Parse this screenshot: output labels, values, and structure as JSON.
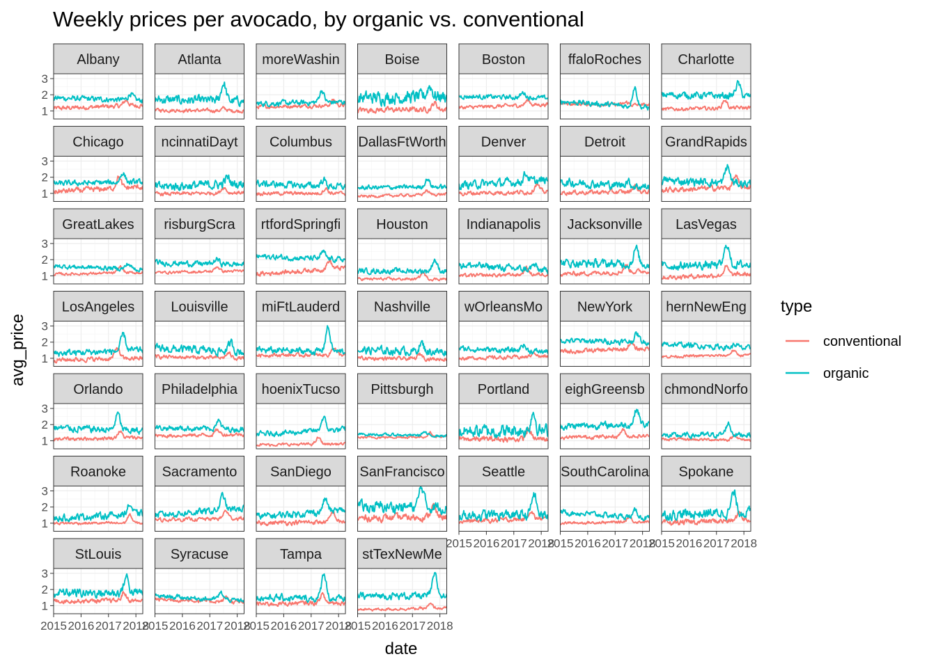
{
  "chart_data": {
    "type": "line",
    "title": "Weekly prices per avocado, by organic vs. conventional",
    "xlabel": "date",
    "ylabel": "avg_price",
    "x_ticks": [
      "2015",
      "2016",
      "2017",
      "2018"
    ],
    "y_ticks": [
      "1",
      "2",
      "3"
    ],
    "xlim": [
      2015.0,
      2018.25
    ],
    "ylim": [
      0.5,
      3.3
    ],
    "grid": true,
    "facet": "wrap",
    "legend": {
      "title": "type",
      "position": "right",
      "entries": [
        {
          "name": "conventional",
          "color": "#F8766D"
        },
        {
          "name": "organic",
          "color": "#00BFC4"
        }
      ]
    },
    "series_colors": {
      "conventional": "#F8766D",
      "organic": "#00BFC4"
    },
    "panels": [
      {
        "region": "Albany",
        "conventional": {
          "start": 1.15,
          "end": 1.35,
          "peak": 1.7,
          "vol": 0.1
        },
        "organic": {
          "start": 1.8,
          "end": 1.65,
          "peak": 2.2,
          "vol": 0.12
        }
      },
      {
        "region": "Atlanta",
        "conventional": {
          "start": 1.05,
          "end": 1.0,
          "peak": 1.2,
          "vol": 0.08
        },
        "organic": {
          "start": 1.7,
          "end": 1.6,
          "peak": 2.8,
          "vol": 0.2
        }
      },
      {
        "region": "moreWashin",
        "conventional": {
          "start": 1.25,
          "end": 1.35,
          "peak": 1.7,
          "vol": 0.08
        },
        "organic": {
          "start": 1.45,
          "end": 1.55,
          "peak": 2.3,
          "vol": 0.12
        }
      },
      {
        "region": "Boise",
        "conventional": {
          "start": 1.05,
          "end": 1.1,
          "peak": 1.5,
          "vol": 0.12
        },
        "organic": {
          "start": 1.8,
          "end": 1.9,
          "peak": 2.6,
          "vol": 0.28
        }
      },
      {
        "region": "Boston",
        "conventional": {
          "start": 1.2,
          "end": 1.4,
          "peak": 1.7,
          "vol": 0.08
        },
        "organic": {
          "start": 1.9,
          "end": 1.8,
          "peak": 2.2,
          "vol": 0.1
        }
      },
      {
        "region": "ffaloRoches",
        "conventional": {
          "start": 1.45,
          "end": 1.35,
          "peak": 1.6,
          "vol": 0.08
        },
        "organic": {
          "start": 1.6,
          "end": 1.2,
          "peak": 2.8,
          "vol": 0.12
        }
      },
      {
        "region": "Charlotte",
        "conventional": {
          "start": 1.1,
          "end": 1.2,
          "peak": 1.7,
          "vol": 0.08
        },
        "organic": {
          "start": 2.0,
          "end": 1.9,
          "peak": 2.8,
          "vol": 0.15
        }
      },
      {
        "region": "Chicago",
        "conventional": {
          "start": 1.1,
          "end": 1.4,
          "peak": 2.1,
          "vol": 0.12
        },
        "organic": {
          "start": 1.6,
          "end": 1.7,
          "peak": 2.3,
          "vol": 0.12
        }
      },
      {
        "region": "ncinnatiDayt",
        "conventional": {
          "start": 0.95,
          "end": 1.05,
          "peak": 1.4,
          "vol": 0.08
        },
        "organic": {
          "start": 1.4,
          "end": 1.6,
          "peak": 2.0,
          "vol": 0.2
        }
      },
      {
        "region": "Columbus",
        "conventional": {
          "start": 1.0,
          "end": 1.0,
          "peak": 1.3,
          "vol": 0.08
        },
        "organic": {
          "start": 1.6,
          "end": 1.4,
          "peak": 2.0,
          "vol": 0.15
        }
      },
      {
        "region": "DallasFtWorth",
        "conventional": {
          "start": 0.8,
          "end": 0.95,
          "peak": 1.2,
          "vol": 0.06
        },
        "organic": {
          "start": 1.35,
          "end": 1.4,
          "peak": 1.9,
          "vol": 0.1
        }
      },
      {
        "region": "Denver",
        "conventional": {
          "start": 1.0,
          "end": 1.1,
          "peak": 1.6,
          "vol": 0.1
        },
        "organic": {
          "start": 1.5,
          "end": 1.8,
          "peak": 2.3,
          "vol": 0.18
        }
      },
      {
        "region": "Detroit",
        "conventional": {
          "start": 1.05,
          "end": 1.1,
          "peak": 1.5,
          "vol": 0.1
        },
        "organic": {
          "start": 1.7,
          "end": 1.4,
          "peak": 2.0,
          "vol": 0.18
        }
      },
      {
        "region": "GrandRapids",
        "conventional": {
          "start": 1.2,
          "end": 1.4,
          "peak": 2.1,
          "vol": 0.12
        },
        "organic": {
          "start": 1.8,
          "end": 1.6,
          "peak": 2.8,
          "vol": 0.18
        }
      },
      {
        "region": "GreatLakes",
        "conventional": {
          "start": 1.1,
          "end": 1.2,
          "peak": 1.6,
          "vol": 0.06
        },
        "organic": {
          "start": 1.6,
          "end": 1.4,
          "peak": 1.9,
          "vol": 0.1
        }
      },
      {
        "region": "risburgScra",
        "conventional": {
          "start": 1.2,
          "end": 1.3,
          "peak": 1.6,
          "vol": 0.06
        },
        "organic": {
          "start": 1.8,
          "end": 1.7,
          "peak": 2.1,
          "vol": 0.12
        }
      },
      {
        "region": "rtfordSpringfi",
        "conventional": {
          "start": 1.1,
          "end": 1.5,
          "peak": 2.0,
          "vol": 0.1
        },
        "organic": {
          "start": 2.2,
          "end": 2.0,
          "peak": 2.6,
          "vol": 0.12
        }
      },
      {
        "region": "Houston",
        "conventional": {
          "start": 0.8,
          "end": 0.8,
          "peak": 1.2,
          "vol": 0.06
        },
        "organic": {
          "start": 1.3,
          "end": 1.3,
          "peak": 2.0,
          "vol": 0.12
        }
      },
      {
        "region": "Indianapolis",
        "conventional": {
          "start": 1.0,
          "end": 1.1,
          "peak": 1.5,
          "vol": 0.08
        },
        "organic": {
          "start": 1.7,
          "end": 1.3,
          "peak": 2.0,
          "vol": 0.15
        }
      },
      {
        "region": "Jacksonville",
        "conventional": {
          "start": 1.1,
          "end": 1.3,
          "peak": 1.7,
          "vol": 0.1
        },
        "organic": {
          "start": 1.8,
          "end": 1.7,
          "peak": 2.8,
          "vol": 0.18
        }
      },
      {
        "region": "LasVegas",
        "conventional": {
          "start": 0.9,
          "end": 1.1,
          "peak": 1.6,
          "vol": 0.1
        },
        "organic": {
          "start": 1.6,
          "end": 1.7,
          "peak": 3.0,
          "vol": 0.18
        }
      },
      {
        "region": "LosAngeles",
        "conventional": {
          "start": 0.9,
          "end": 1.0,
          "peak": 1.7,
          "vol": 0.1
        },
        "organic": {
          "start": 1.3,
          "end": 1.5,
          "peak": 2.5,
          "vol": 0.15
        }
      },
      {
        "region": "Louisville",
        "conventional": {
          "start": 1.1,
          "end": 1.0,
          "peak": 1.4,
          "vol": 0.08
        },
        "organic": {
          "start": 1.6,
          "end": 1.4,
          "peak": 2.1,
          "vol": 0.18
        }
      },
      {
        "region": "miFtLauderd",
        "conventional": {
          "start": 1.2,
          "end": 1.2,
          "peak": 1.7,
          "vol": 0.08
        },
        "organic": {
          "start": 1.5,
          "end": 1.4,
          "peak": 3.0,
          "vol": 0.15
        }
      },
      {
        "region": "Nashville",
        "conventional": {
          "start": 1.0,
          "end": 0.95,
          "peak": 1.3,
          "vol": 0.08
        },
        "organic": {
          "start": 1.5,
          "end": 1.4,
          "peak": 2.0,
          "vol": 0.18
        }
      },
      {
        "region": "wOrleansMo",
        "conventional": {
          "start": 1.0,
          "end": 1.1,
          "peak": 1.4,
          "vol": 0.08
        },
        "organic": {
          "start": 1.6,
          "end": 1.4,
          "peak": 2.0,
          "vol": 0.12
        }
      },
      {
        "region": "NewYork",
        "conventional": {
          "start": 1.4,
          "end": 1.6,
          "peak": 2.0,
          "vol": 0.1
        },
        "organic": {
          "start": 2.1,
          "end": 2.0,
          "peak": 2.6,
          "vol": 0.12
        }
      },
      {
        "region": "hernNewEng",
        "conventional": {
          "start": 1.1,
          "end": 1.2,
          "peak": 1.5,
          "vol": 0.06
        },
        "organic": {
          "start": 1.9,
          "end": 1.6,
          "peak": 2.1,
          "vol": 0.12
        }
      },
      {
        "region": "Orlando",
        "conventional": {
          "start": 1.1,
          "end": 1.2,
          "peak": 1.6,
          "vol": 0.08
        },
        "organic": {
          "start": 1.8,
          "end": 1.6,
          "peak": 2.8,
          "vol": 0.15
        }
      },
      {
        "region": "Philadelphia",
        "conventional": {
          "start": 1.3,
          "end": 1.4,
          "peak": 1.7,
          "vol": 0.08
        },
        "organic": {
          "start": 1.8,
          "end": 1.7,
          "peak": 2.3,
          "vol": 0.12
        }
      },
      {
        "region": "hoenixTucso",
        "conventional": {
          "start": 0.75,
          "end": 0.8,
          "peak": 1.2,
          "vol": 0.06
        },
        "organic": {
          "start": 1.4,
          "end": 1.7,
          "peak": 2.5,
          "vol": 0.12
        }
      },
      {
        "region": "Pittsburgh",
        "conventional": {
          "start": 1.2,
          "end": 1.25,
          "peak": 1.5,
          "vol": 0.05
        },
        "organic": {
          "start": 1.4,
          "end": 1.3,
          "peak": 1.6,
          "vol": 0.06
        }
      },
      {
        "region": "Portland",
        "conventional": {
          "start": 1.1,
          "end": 1.1,
          "peak": 1.7,
          "vol": 0.12
        },
        "organic": {
          "start": 1.6,
          "end": 1.6,
          "peak": 2.8,
          "vol": 0.28
        }
      },
      {
        "region": "eighGreensb",
        "conventional": {
          "start": 1.2,
          "end": 1.3,
          "peak": 1.7,
          "vol": 0.08
        },
        "organic": {
          "start": 1.9,
          "end": 2.0,
          "peak": 3.0,
          "vol": 0.15
        }
      },
      {
        "region": "chmondNorfo",
        "conventional": {
          "start": 1.1,
          "end": 1.05,
          "peak": 1.4,
          "vol": 0.06
        },
        "organic": {
          "start": 1.3,
          "end": 1.4,
          "peak": 2.1,
          "vol": 0.12
        }
      },
      {
        "region": "Roanoke",
        "conventional": {
          "start": 1.0,
          "end": 1.0,
          "peak": 1.5,
          "vol": 0.06
        },
        "organic": {
          "start": 1.3,
          "end": 1.6,
          "peak": 2.2,
          "vol": 0.15
        }
      },
      {
        "region": "Sacramento",
        "conventional": {
          "start": 1.2,
          "end": 1.3,
          "peak": 1.8,
          "vol": 0.08
        },
        "organic": {
          "start": 1.5,
          "end": 1.9,
          "peak": 2.8,
          "vol": 0.15
        }
      },
      {
        "region": "SanDiego",
        "conventional": {
          "start": 1.0,
          "end": 1.1,
          "peak": 1.7,
          "vol": 0.1
        },
        "organic": {
          "start": 1.4,
          "end": 1.8,
          "peak": 2.6,
          "vol": 0.15
        }
      },
      {
        "region": "SanFrancisco",
        "conventional": {
          "start": 1.3,
          "end": 1.4,
          "peak": 2.1,
          "vol": 0.15
        },
        "organic": {
          "start": 2.0,
          "end": 2.0,
          "peak": 3.3,
          "vol": 0.25
        }
      },
      {
        "region": "Seattle",
        "conventional": {
          "start": 1.1,
          "end": 1.3,
          "peak": 1.8,
          "vol": 0.1
        },
        "organic": {
          "start": 1.5,
          "end": 1.5,
          "peak": 2.8,
          "vol": 0.22
        }
      },
      {
        "region": "SouthCarolina",
        "conventional": {
          "start": 1.0,
          "end": 1.1,
          "peak": 1.4,
          "vol": 0.06
        },
        "organic": {
          "start": 1.7,
          "end": 1.3,
          "peak": 2.1,
          "vol": 0.12
        }
      },
      {
        "region": "Spokane",
        "conventional": {
          "start": 1.0,
          "end": 1.2,
          "peak": 1.7,
          "vol": 0.12
        },
        "organic": {
          "start": 1.5,
          "end": 1.7,
          "peak": 2.9,
          "vol": 0.22
        }
      },
      {
        "region": "StLouis",
        "conventional": {
          "start": 1.3,
          "end": 1.3,
          "peak": 1.8,
          "vol": 0.1
        },
        "organic": {
          "start": 1.8,
          "end": 1.8,
          "peak": 2.8,
          "vol": 0.2
        }
      },
      {
        "region": "Syracuse",
        "conventional": {
          "start": 1.4,
          "end": 1.2,
          "peak": 1.7,
          "vol": 0.08
        },
        "organic": {
          "start": 1.6,
          "end": 1.3,
          "peak": 2.0,
          "vol": 0.1
        }
      },
      {
        "region": "Tampa",
        "conventional": {
          "start": 1.1,
          "end": 1.2,
          "peak": 1.7,
          "vol": 0.1
        },
        "organic": {
          "start": 1.5,
          "end": 1.4,
          "peak": 3.1,
          "vol": 0.15
        }
      },
      {
        "region": "stTexNewMe",
        "conventional": {
          "start": 0.75,
          "end": 0.85,
          "peak": 1.1,
          "vol": 0.06
        },
        "organic": {
          "start": 1.6,
          "end": 1.6,
          "peak": 2.9,
          "vol": 0.15
        }
      }
    ]
  }
}
